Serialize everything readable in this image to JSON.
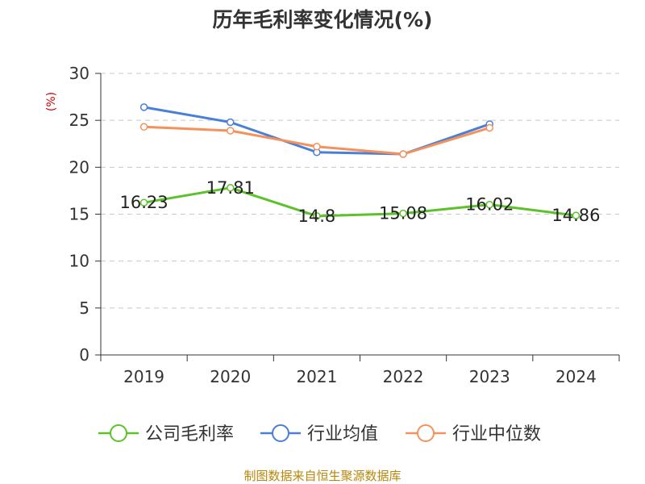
{
  "chart_data": {
    "type": "line",
    "title": "历年毛利率变化情况(%)",
    "ylabel": "(%)",
    "categories": [
      "2019",
      "2020",
      "2021",
      "2022",
      "2023",
      "2024"
    ],
    "ylim": [
      0,
      30
    ],
    "yticks": [
      0,
      5,
      10,
      15,
      20,
      25,
      30
    ],
    "grid": true,
    "legend_position": "bottom",
    "series": [
      {
        "name": "公司毛利率",
        "color": "#5cc12a",
        "values": [
          16.23,
          17.81,
          14.8,
          15.08,
          16.02,
          14.86
        ],
        "labels": [
          "16.23",
          "17.81",
          "14.8",
          "15.08",
          "16.02",
          "14.86"
        ]
      },
      {
        "name": "行业均值",
        "color": "#4a7fd8",
        "values": [
          26.4,
          24.8,
          21.6,
          21.4,
          24.6,
          null
        ]
      },
      {
        "name": "行业中位数",
        "color": "#f5915a",
        "values": [
          24.3,
          23.9,
          22.2,
          21.4,
          24.2,
          null
        ]
      }
    ]
  },
  "source_text": "制图数据来自恒生聚源数据库"
}
